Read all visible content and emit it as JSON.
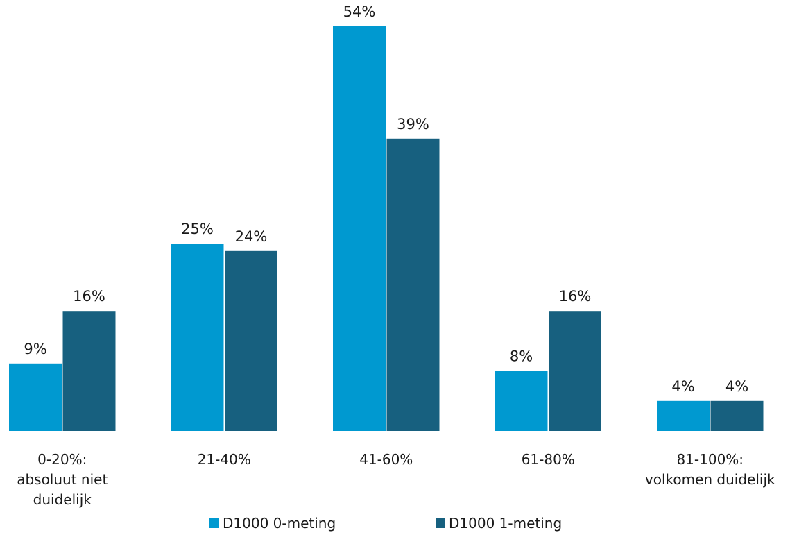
{
  "chart_data": {
    "type": "bar",
    "categories": [
      [
        "0-20%:",
        "absoluut niet",
        "duidelijk"
      ],
      [
        "21-40%"
      ],
      [
        "41-60%"
      ],
      [
        "61-80%"
      ],
      [
        "81-100%:",
        "volkomen duidelijk"
      ]
    ],
    "series": [
      {
        "name": "D1000 0-meting",
        "color": "#0099d0",
        "values": [
          9,
          25,
          54,
          8,
          4
        ],
        "labels": [
          "9%",
          "25%",
          "54%",
          "8%",
          "4%"
        ]
      },
      {
        "name": "D1000 1-meting",
        "color": "#17607f",
        "values": [
          16,
          24,
          39,
          16,
          4
        ],
        "labels": [
          "16%",
          "24%",
          "39%",
          "16%",
          "4%"
        ]
      }
    ],
    "value_unit": "%",
    "ylim": [
      0,
      60
    ],
    "grid": false,
    "legend_position": "bottom"
  }
}
